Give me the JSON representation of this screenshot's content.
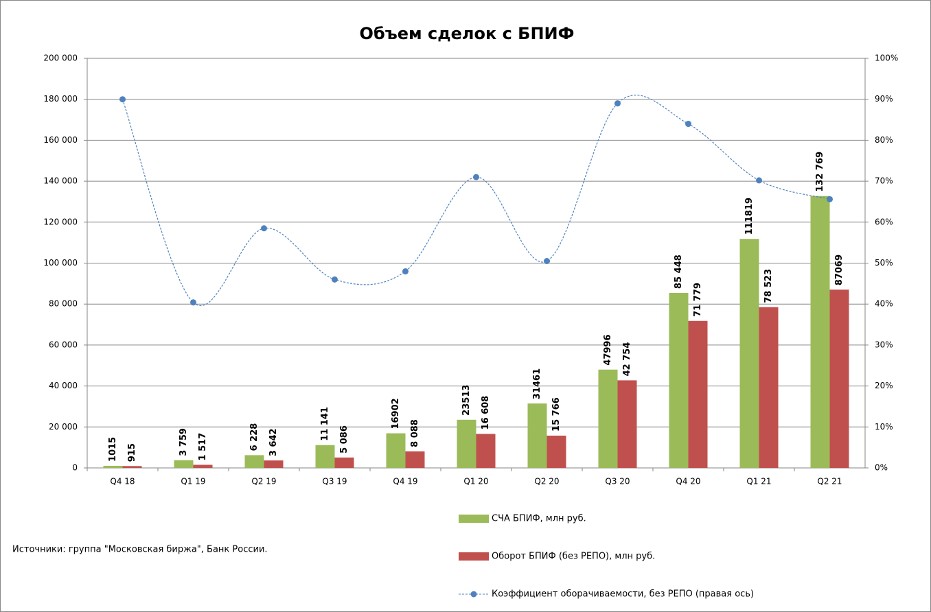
{
  "chart_data": {
    "type": "bar",
    "title": "Объем сделок с БПИФ",
    "annotations": [
      "Источники: группа \"Московская биржа\", Банк России."
    ],
    "categories": [
      "Q4 18",
      "Q1 19",
      "Q2 19",
      "Q3 19",
      "Q4 19",
      "Q1 20",
      "Q2 20",
      "Q3 20",
      "Q4 20",
      "Q1 21",
      "Q2 21"
    ],
    "series": [
      {
        "name": "СЧА БПИФ, млн руб.",
        "color": "#9bbb59",
        "type": "bar",
        "values": [
          1015,
          3759,
          6228,
          11141,
          16902,
          23513,
          31461,
          47996,
          85448,
          111819,
          132769
        ],
        "value_labels": [
          "1015",
          "3 759",
          "6 228",
          "11 141",
          "16902",
          "23513",
          "31461",
          "47996",
          "85 448",
          "111819",
          "132 769"
        ]
      },
      {
        "name": "Оборот БПИФ (без РЕПО), млн руб.",
        "color": "#c0504d",
        "type": "bar",
        "values": [
          915,
          1517,
          3642,
          5086,
          8088,
          16608,
          15766,
          42754,
          71779,
          78523,
          87069
        ],
        "value_labels": [
          "915",
          "1 517",
          "3 642",
          "5 086",
          "8 088",
          "16 608",
          "15 766",
          "42 754",
          "71 779",
          "78 523",
          "87069"
        ]
      },
      {
        "name": "Коэффициент оборачиваемости, без РЕПО (правая ось)",
        "color": "#4f81bd",
        "type": "line",
        "axis": "y2",
        "values": [
          90,
          40.4,
          58.5,
          46,
          48,
          71,
          50.5,
          89,
          84,
          70.2,
          65.6
        ]
      }
    ],
    "ylim": [
      0,
      200000
    ],
    "yticks": [
      0,
      {
        "value": 20000,
        "label": "20 000"
      },
      {
        "value": 40000,
        "label": "40 000"
      },
      {
        "value": 60000,
        "label": "60 000"
      },
      {
        "value": 80000,
        "label": "80 000"
      },
      {
        "value": 100000,
        "label": "100 000"
      },
      {
        "value": 120000,
        "label": "120 000"
      },
      {
        "value": 140000,
        "label": "140 000"
      },
      {
        "value": 160000,
        "label": "160 000"
      },
      {
        "value": 180000,
        "label": "180 000"
      },
      {
        "value": 200000,
        "label": "200 000"
      }
    ],
    "y2lim": [
      0,
      100
    ],
    "y2ticks": [
      {
        "value": 0,
        "label": "0%"
      },
      {
        "value": 10,
        "label": "10%"
      },
      {
        "value": 20,
        "label": "20%"
      },
      {
        "value": 30,
        "label": "30%"
      },
      {
        "value": 40,
        "label": "40%"
      },
      {
        "value": 50,
        "label": "50%"
      },
      {
        "value": 60,
        "label": "60%"
      },
      {
        "value": 70,
        "label": "70%"
      },
      {
        "value": 80,
        "label": "80%"
      },
      {
        "value": 90,
        "label": "90%"
      },
      {
        "value": 100,
        "label": "100%"
      }
    ],
    "grid": true
  }
}
